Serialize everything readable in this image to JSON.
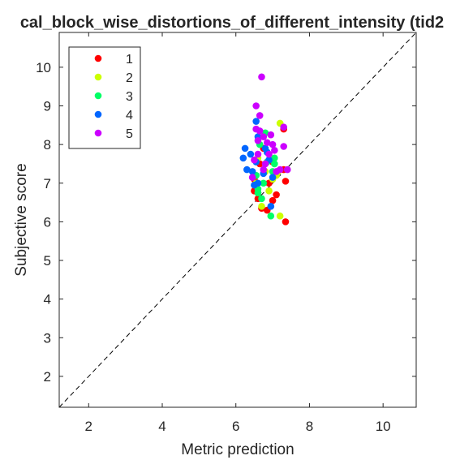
{
  "chart_data": {
    "type": "scatter",
    "title": "cal_block_wise_distortions_of_different_intensity (tid2",
    "xlabel": "Metric prediction",
    "ylabel": "Subjective score",
    "xlim": [
      1.2,
      10.9
    ],
    "ylim": [
      1.2,
      10.9
    ],
    "xticks": [
      2,
      4,
      6,
      8,
      10
    ],
    "yticks": [
      2,
      3,
      4,
      5,
      6,
      7,
      8,
      9,
      10
    ],
    "grid": false,
    "legend_position": "top-left",
    "reference_line": {
      "style": "dashed",
      "description": "y = x"
    },
    "series": [
      {
        "name": "1",
        "color": "#ff0000",
        "points": [
          [
            6.5,
            6.8
          ],
          [
            6.6,
            6.6
          ],
          [
            6.7,
            6.35
          ],
          [
            6.85,
            6.3
          ],
          [
            7.0,
            6.55
          ],
          [
            7.1,
            6.7
          ],
          [
            7.35,
            6.0
          ],
          [
            6.9,
            7.0
          ],
          [
            6.5,
            7.1
          ],
          [
            7.0,
            7.55
          ],
          [
            7.3,
            7.35
          ],
          [
            7.35,
            7.05
          ],
          [
            6.75,
            7.9
          ],
          [
            6.65,
            7.5
          ],
          [
            7.3,
            8.4
          ],
          [
            6.6,
            6.75
          ]
        ]
      },
      {
        "name": "2",
        "color": "#ccff00",
        "points": [
          [
            6.7,
            6.4
          ],
          [
            6.9,
            6.8
          ],
          [
            7.2,
            6.15
          ],
          [
            7.0,
            7.1
          ],
          [
            7.15,
            7.3
          ],
          [
            7.2,
            8.55
          ],
          [
            6.55,
            7.0
          ],
          [
            6.8,
            7.3
          ],
          [
            7.1,
            7.2
          ],
          [
            6.6,
            7.65
          ]
        ]
      },
      {
        "name": "3",
        "color": "#00ff66",
        "points": [
          [
            6.7,
            6.6
          ],
          [
            6.6,
            6.75
          ],
          [
            6.95,
            6.15
          ],
          [
            6.75,
            7.0
          ],
          [
            7.0,
            7.3
          ],
          [
            7.05,
            7.5
          ],
          [
            6.85,
            7.55
          ],
          [
            7.05,
            7.65
          ],
          [
            6.55,
            7.2
          ],
          [
            6.8,
            8.3
          ],
          [
            6.65,
            8.0
          ],
          [
            6.6,
            6.85
          ]
        ]
      },
      {
        "name": "4",
        "color": "#0066ff",
        "points": [
          [
            6.25,
            7.9
          ],
          [
            6.3,
            7.35
          ],
          [
            6.2,
            7.65
          ],
          [
            6.4,
            7.75
          ],
          [
            6.5,
            6.95
          ],
          [
            6.55,
            7.55
          ],
          [
            6.6,
            8.2
          ],
          [
            6.8,
            7.9
          ],
          [
            6.9,
            7.6
          ],
          [
            6.75,
            7.25
          ],
          [
            6.95,
            6.4
          ],
          [
            7.0,
            7.15
          ],
          [
            6.55,
            8.6
          ],
          [
            6.45,
            7.3
          ],
          [
            6.85,
            7.8
          ],
          [
            6.6,
            7.0
          ]
        ]
      },
      {
        "name": "5",
        "color": "#cc00ff",
        "points": [
          [
            6.7,
            9.75
          ],
          [
            6.55,
            9.0
          ],
          [
            6.65,
            8.75
          ],
          [
            6.55,
            8.4
          ],
          [
            6.75,
            8.2
          ],
          [
            6.6,
            8.1
          ],
          [
            6.85,
            8.05
          ],
          [
            6.95,
            8.25
          ],
          [
            7.0,
            8.0
          ],
          [
            7.3,
            7.95
          ],
          [
            7.05,
            7.85
          ],
          [
            6.9,
            7.75
          ],
          [
            6.5,
            7.6
          ],
          [
            7.2,
            7.35
          ],
          [
            7.4,
            7.35
          ],
          [
            6.45,
            7.15
          ],
          [
            6.75,
            7.35
          ],
          [
            6.6,
            7.75
          ],
          [
            7.3,
            8.45
          ],
          [
            6.8,
            7.5
          ],
          [
            6.65,
            8.35
          ],
          [
            7.1,
            7.3
          ]
        ]
      }
    ]
  }
}
